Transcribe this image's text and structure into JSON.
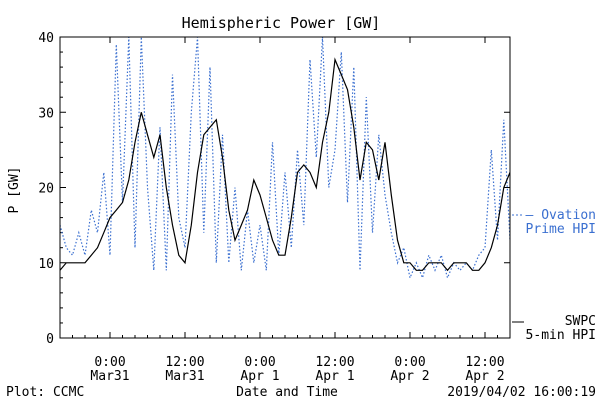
{
  "chart_data": {
    "type": "line",
    "title": "Hemispheric Power [GW]",
    "ylabel": "P [GW]",
    "xlabel": "Date and Time",
    "ylim": [
      0,
      40
    ],
    "yticks": [
      0,
      10,
      20,
      30,
      40
    ],
    "xlim": [
      "2019-03-30T16:00",
      "2019-04-02T16:00"
    ],
    "xticks": [
      {
        "t": "2019-03-31T00:00",
        "line1": "0:00",
        "line2": "Mar31"
      },
      {
        "t": "2019-03-31T12:00",
        "line1": "12:00",
        "line2": "Mar31"
      },
      {
        "t": "2019-04-01T00:00",
        "line1": "0:00",
        "line2": "Apr 1"
      },
      {
        "t": "2019-04-01T12:00",
        "line1": "12:00",
        "line2": "Apr 1"
      },
      {
        "t": "2019-04-02T00:00",
        "line1": "0:00",
        "line2": "Apr 2"
      },
      {
        "t": "2019-04-02T12:00",
        "line1": "12:00",
        "line2": "Apr 2"
      }
    ],
    "grid": false,
    "legend_position": "right",
    "series": [
      {
        "name": "SWPC 5-min HPI",
        "legend_line1": "SWPC",
        "legend_line2": "5-min HPI",
        "color": "#000000",
        "style": "solid",
        "points": [
          [
            "2019-03-30T16:00",
            9
          ],
          [
            "2019-03-30T17:00",
            10
          ],
          [
            "2019-03-30T18:00",
            10
          ],
          [
            "2019-03-30T20:00",
            10
          ],
          [
            "2019-03-30T21:00",
            11
          ],
          [
            "2019-03-30T22:00",
            12
          ],
          [
            "2019-03-30T23:00",
            14
          ],
          [
            "2019-03-31T00:00",
            16
          ],
          [
            "2019-03-31T01:00",
            17
          ],
          [
            "2019-03-31T02:00",
            18
          ],
          [
            "2019-03-31T03:00",
            21
          ],
          [
            "2019-03-31T04:00",
            26
          ],
          [
            "2019-03-31T05:00",
            30
          ],
          [
            "2019-03-31T06:00",
            27
          ],
          [
            "2019-03-31T07:00",
            24
          ],
          [
            "2019-03-31T08:00",
            27
          ],
          [
            "2019-03-31T09:00",
            20
          ],
          [
            "2019-03-31T10:00",
            15
          ],
          [
            "2019-03-31T11:00",
            11
          ],
          [
            "2019-03-31T12:00",
            10
          ],
          [
            "2019-03-31T13:00",
            15
          ],
          [
            "2019-03-31T14:00",
            22
          ],
          [
            "2019-03-31T15:00",
            27
          ],
          [
            "2019-03-31T16:00",
            28
          ],
          [
            "2019-03-31T17:00",
            29
          ],
          [
            "2019-03-31T18:00",
            24
          ],
          [
            "2019-03-31T19:00",
            17
          ],
          [
            "2019-03-31T20:00",
            13
          ],
          [
            "2019-03-31T21:00",
            15
          ],
          [
            "2019-03-31T22:00",
            17
          ],
          [
            "2019-03-31T23:00",
            21
          ],
          [
            "2019-04-01T00:00",
            19
          ],
          [
            "2019-04-01T01:00",
            16
          ],
          [
            "2019-04-01T02:00",
            13
          ],
          [
            "2019-04-01T03:00",
            11
          ],
          [
            "2019-04-01T04:00",
            11
          ],
          [
            "2019-04-01T05:00",
            16
          ],
          [
            "2019-04-01T06:00",
            22
          ],
          [
            "2019-04-01T07:00",
            23
          ],
          [
            "2019-04-01T08:00",
            22
          ],
          [
            "2019-04-01T09:00",
            20
          ],
          [
            "2019-04-01T10:00",
            26
          ],
          [
            "2019-04-01T11:00",
            30
          ],
          [
            "2019-04-01T12:00",
            37
          ],
          [
            "2019-04-01T13:00",
            35
          ],
          [
            "2019-04-01T14:00",
            33
          ],
          [
            "2019-04-01T15:00",
            28
          ],
          [
            "2019-04-01T16:00",
            21
          ],
          [
            "2019-04-01T17:00",
            26
          ],
          [
            "2019-04-01T18:00",
            25
          ],
          [
            "2019-04-01T19:00",
            21
          ],
          [
            "2019-04-01T20:00",
            26
          ],
          [
            "2019-04-01T21:00",
            19
          ],
          [
            "2019-04-01T22:00",
            13
          ],
          [
            "2019-04-01T23:00",
            10
          ],
          [
            "2019-04-02T00:00",
            10
          ],
          [
            "2019-04-02T01:00",
            9
          ],
          [
            "2019-04-02T02:00",
            9
          ],
          [
            "2019-04-02T03:00",
            10
          ],
          [
            "2019-04-02T04:00",
            10
          ],
          [
            "2019-04-02T05:00",
            10
          ],
          [
            "2019-04-02T06:00",
            9
          ],
          [
            "2019-04-02T07:00",
            10
          ],
          [
            "2019-04-02T08:00",
            10
          ],
          [
            "2019-04-02T09:00",
            10
          ],
          [
            "2019-04-02T10:00",
            9
          ],
          [
            "2019-04-02T11:00",
            9
          ],
          [
            "2019-04-02T12:00",
            10
          ],
          [
            "2019-04-02T13:00",
            12
          ],
          [
            "2019-04-02T14:00",
            15
          ],
          [
            "2019-04-02T15:00",
            20
          ],
          [
            "2019-04-02T16:00",
            22
          ]
        ]
      },
      {
        "name": "Ovation Prime HPI",
        "legend_line1": "— Ovation",
        "legend_line2": "Prime HPI",
        "color": "#3a6fd0",
        "style": "dotted",
        "points": [
          [
            "2019-03-30T16:00",
            15
          ],
          [
            "2019-03-30T17:00",
            12
          ],
          [
            "2019-03-30T18:00",
            11
          ],
          [
            "2019-03-30T19:00",
            14
          ],
          [
            "2019-03-30T20:00",
            11
          ],
          [
            "2019-03-30T21:00",
            17
          ],
          [
            "2019-03-30T22:00",
            14
          ],
          [
            "2019-03-30T23:00",
            22
          ],
          [
            "2019-03-31T00:00",
            11
          ],
          [
            "2019-03-31T01:00",
            39
          ],
          [
            "2019-03-31T02:00",
            18
          ],
          [
            "2019-03-31T03:00",
            40
          ],
          [
            "2019-03-31T04:00",
            12
          ],
          [
            "2019-03-31T05:00",
            40
          ],
          [
            "2019-03-31T06:00",
            20
          ],
          [
            "2019-03-31T07:00",
            9
          ],
          [
            "2019-03-31T08:00",
            28
          ],
          [
            "2019-03-31T09:00",
            9
          ],
          [
            "2019-03-31T10:00",
            35
          ],
          [
            "2019-03-31T11:00",
            16
          ],
          [
            "2019-03-31T12:00",
            12
          ],
          [
            "2019-03-31T13:00",
            30
          ],
          [
            "2019-03-31T14:00",
            40
          ],
          [
            "2019-03-31T15:00",
            14
          ],
          [
            "2019-03-31T16:00",
            36
          ],
          [
            "2019-03-31T17:00",
            10
          ],
          [
            "2019-03-31T18:00",
            27
          ],
          [
            "2019-03-31T19:00",
            10
          ],
          [
            "2019-03-31T20:00",
            20
          ],
          [
            "2019-03-31T21:00",
            9
          ],
          [
            "2019-03-31T22:00",
            17
          ],
          [
            "2019-03-31T23:00",
            10
          ],
          [
            "2019-04-01T00:00",
            15
          ],
          [
            "2019-04-01T01:00",
            9
          ],
          [
            "2019-04-01T02:00",
            26
          ],
          [
            "2019-04-01T03:00",
            11
          ],
          [
            "2019-04-01T04:00",
            22
          ],
          [
            "2019-04-01T05:00",
            12
          ],
          [
            "2019-04-01T06:00",
            25
          ],
          [
            "2019-04-01T07:00",
            15
          ],
          [
            "2019-04-01T08:00",
            37
          ],
          [
            "2019-04-01T09:00",
            24
          ],
          [
            "2019-04-01T10:00",
            40
          ],
          [
            "2019-04-01T11:00",
            20
          ],
          [
            "2019-04-01T12:00",
            25
          ],
          [
            "2019-04-01T13:00",
            38
          ],
          [
            "2019-04-01T14:00",
            18
          ],
          [
            "2019-04-01T15:00",
            36
          ],
          [
            "2019-04-01T16:00",
            9
          ],
          [
            "2019-04-01T17:00",
            32
          ],
          [
            "2019-04-01T18:00",
            14
          ],
          [
            "2019-04-01T19:00",
            27
          ],
          [
            "2019-04-01T20:00",
            19
          ],
          [
            "2019-04-01T21:00",
            14
          ],
          [
            "2019-04-01T22:00",
            10
          ],
          [
            "2019-04-01T23:00",
            12
          ],
          [
            "2019-04-02T00:00",
            8
          ],
          [
            "2019-04-02T01:00",
            10
          ],
          [
            "2019-04-02T02:00",
            8
          ],
          [
            "2019-04-02T03:00",
            11
          ],
          [
            "2019-04-02T04:00",
            9
          ],
          [
            "2019-04-02T05:00",
            11
          ],
          [
            "2019-04-02T06:00",
            8
          ],
          [
            "2019-04-02T07:00",
            10
          ],
          [
            "2019-04-02T08:00",
            9
          ],
          [
            "2019-04-02T09:00",
            10
          ],
          [
            "2019-04-02T10:00",
            9
          ],
          [
            "2019-04-02T11:00",
            11
          ],
          [
            "2019-04-02T12:00",
            12
          ],
          [
            "2019-04-02T13:00",
            25
          ],
          [
            "2019-04-02T14:00",
            13
          ],
          [
            "2019-04-02T15:00",
            29
          ],
          [
            "2019-04-02T16:00",
            13
          ]
        ]
      }
    ]
  },
  "footer": {
    "left": "Plot: CCMC",
    "right": "2019/04/02 16:00:19"
  }
}
